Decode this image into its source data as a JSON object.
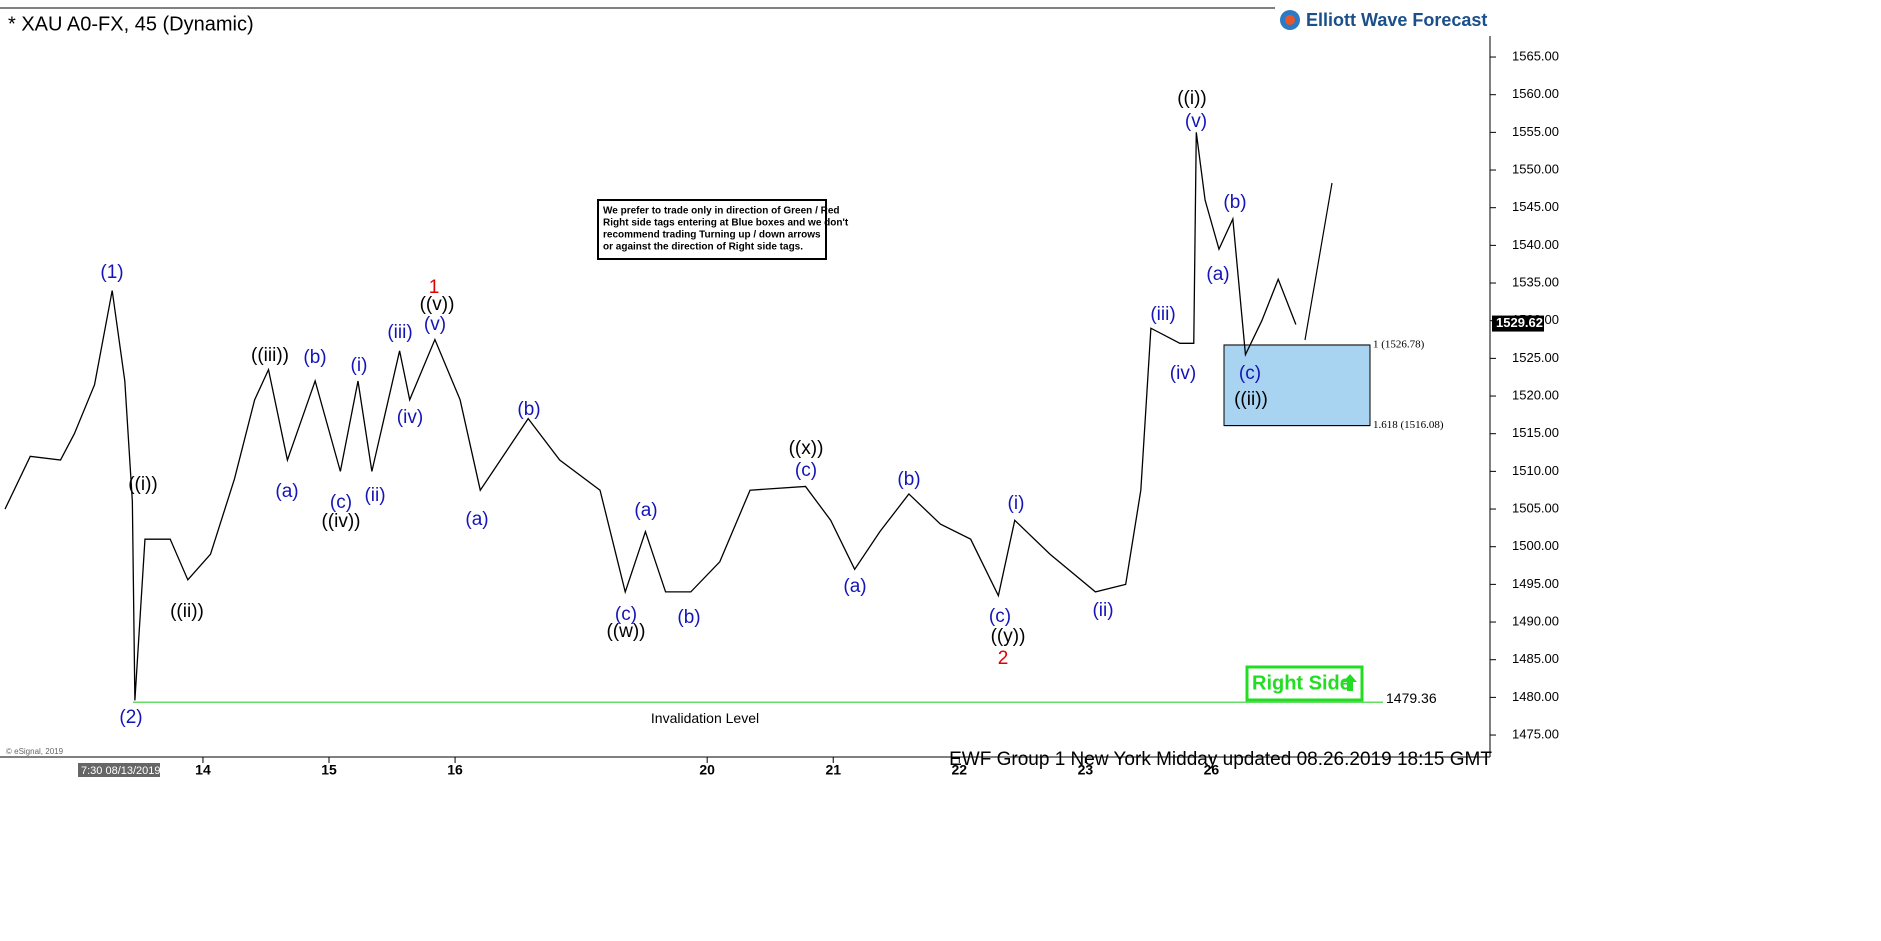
{
  "chart_data": {
    "type": "line",
    "title": "* XAU A0-FX, 45 (Dynamic)",
    "logo": "Elliott Wave Forecast",
    "footer": "EWF Group 1 New York Midday  updated 08.26.2019 18:15 GMT",
    "copyright": "© eSignal, 2019",
    "start_label": "7:30 08/13/2019",
    "note": [
      "We prefer to trade only in direction of Green / Red",
      "Right side tags entering at Blue boxes and we don't",
      "recommend trading Turning up / down arrows",
      "or against the direction of Right side tags."
    ],
    "right_side": "Right Side",
    "x": [
      -0.57,
      -0.37,
      -0.13,
      -0.02,
      0.14,
      0.28,
      0.38,
      0.44,
      0.46,
      0.54,
      0.74,
      0.88,
      1.06,
      1.25,
      1.41,
      1.52,
      1.67,
      1.89,
      2.09,
      2.23,
      2.34,
      2.56,
      2.64,
      2.84,
      3.04,
      3.2,
      3.58,
      3.83,
      4.15,
      4.35,
      4.51,
      4.67,
      4.87,
      5.1,
      5.34,
      5.78,
      5.98,
      6.17,
      6.37,
      6.6,
      6.85,
      7.09,
      7.31,
      7.44,
      7.72,
      8.08,
      8.32,
      8.44,
      8.52,
      8.75,
      8.86,
      8.88,
      8.95,
      9.06,
      9.17,
      9.27,
      9.4,
      9.53,
      9.67
    ],
    "series": [
      {
        "color": "#000000",
        "values": [
          1505,
          1512,
          1511.5,
          1515,
          1521.5,
          1534,
          1522,
          1506,
          1479.6,
          1501,
          1501,
          1495.6,
          1499,
          1509,
          1519.5,
          1523.5,
          1511.5,
          1522,
          1510,
          1522,
          1510,
          1526,
          1519.5,
          1527.5,
          1519.5,
          1507.5,
          1517,
          1511.5,
          1507.5,
          1494,
          1502,
          1494,
          1494,
          1498,
          1507.5,
          1508,
          1503.5,
          1497,
          1502,
          1507,
          1503,
          1501,
          1493.5,
          1503.5,
          1499,
          1494,
          1495,
          1507.5,
          1529,
          1527,
          1527,
          1555,
          1546,
          1539.5,
          1543.5,
          1525.5,
          1530,
          1535.5,
          1529.5
        ]
      }
    ],
    "xlim": [
      -0.61,
      11.21
    ],
    "xticks": [
      {
        "value": 1,
        "label": "14"
      },
      {
        "value": 2,
        "label": "15"
      },
      {
        "value": 3,
        "label": "16"
      },
      {
        "value": 5,
        "label": "20"
      },
      {
        "value": 6,
        "label": "21"
      },
      {
        "value": 7,
        "label": "22"
      },
      {
        "value": 8,
        "label": "23"
      },
      {
        "value": 9,
        "label": "26"
      }
    ],
    "ylim": [
      1472.35,
      1572.57
    ],
    "yticks": [
      {
        "value": 1475,
        "label": "1475.00"
      },
      {
        "value": 1480,
        "label": "1480.00"
      },
      {
        "value": 1485,
        "label": "1485.00"
      },
      {
        "value": 1490,
        "label": "1490.00"
      },
      {
        "value": 1495,
        "label": "1495.00"
      },
      {
        "value": 1500,
        "label": "1500.00"
      },
      {
        "value": 1505,
        "label": "1505.00"
      },
      {
        "value": 1510,
        "label": "1510.00"
      },
      {
        "value": 1515,
        "label": "1515.00"
      },
      {
        "value": 1520,
        "label": "1520.00"
      },
      {
        "value": 1525,
        "label": "1525.00"
      },
      {
        "value": 1530,
        "label": "1530.00"
      },
      {
        "value": 1535,
        "label": "1535.00"
      },
      {
        "value": 1540,
        "label": "1540.00"
      },
      {
        "value": 1545,
        "label": "1545.00"
      },
      {
        "value": 1550,
        "label": "1550.00"
      },
      {
        "value": 1555,
        "label": "1555.00"
      },
      {
        "value": 1560,
        "label": "1560.00"
      },
      {
        "value": 1565,
        "label": "1565.00"
      }
    ],
    "last_price": 1529.62,
    "target_box": {
      "color": "#a8d4f2",
      "levels": [
        {
          "value": 1526.78,
          "label": "1 (1526.78)"
        },
        {
          "value": 1516.08,
          "label": "1.618 (1516.08)"
        }
      ]
    },
    "invalidation": {
      "value": 1479.36,
      "text": "Invalidation Level",
      "color": "#66dd66"
    },
    "annotations": [
      {
        "text": "(1)",
        "color": "#1414b8"
      },
      {
        "text": "(2)",
        "color": "#1414b8"
      },
      {
        "text": "((i))",
        "color": "#000000"
      },
      {
        "text": "((ii))",
        "color": "#000000"
      },
      {
        "text": "((iii))",
        "color": "#000000"
      },
      {
        "text": "(a)",
        "color": "#1414b8"
      },
      {
        "text": "(b)",
        "color": "#1414b8"
      },
      {
        "text": "(c)",
        "color": "#1414b8"
      },
      {
        "text": "((iv))",
        "color": "#000000"
      },
      {
        "text": "(i)",
        "color": "#1414b8"
      },
      {
        "text": "(ii)",
        "color": "#1414b8"
      },
      {
        "text": "(iii)",
        "color": "#1414b8"
      },
      {
        "text": "(iv)",
        "color": "#1414b8"
      },
      {
        "text": "(v)",
        "color": "#1414b8"
      },
      {
        "text": "((v))",
        "color": "#000000"
      },
      {
        "text": "1",
        "color": "#e00000"
      },
      {
        "text": "(a)",
        "color": "#1414b8"
      },
      {
        "text": "(b)",
        "color": "#1414b8"
      },
      {
        "text": "(a)",
        "color": "#1414b8"
      },
      {
        "text": "(c)",
        "color": "#1414b8"
      },
      {
        "text": "((w))",
        "color": "#000000"
      },
      {
        "text": "(b)",
        "color": "#1414b8"
      },
      {
        "text": "((x))",
        "color": "#000000"
      },
      {
        "text": "(c)",
        "color": "#1414b8"
      },
      {
        "text": "(a)",
        "color": "#1414b8"
      },
      {
        "text": "(b)",
        "color": "#1414b8"
      },
      {
        "text": "(i)",
        "color": "#1414b8"
      },
      {
        "text": "(c)",
        "color": "#1414b8"
      },
      {
        "text": "((y))",
        "color": "#000000"
      },
      {
        "text": "2",
        "color": "#e00000"
      },
      {
        "text": "(ii)",
        "color": "#1414b8"
      },
      {
        "text": "(iii)",
        "color": "#1414b8"
      },
      {
        "text": "(iv)",
        "color": "#1414b8"
      },
      {
        "text": "((i))",
        "color": "#000000"
      },
      {
        "text": "(v)",
        "color": "#1414b8"
      },
      {
        "text": "(b)",
        "color": "#1414b8"
      },
      {
        "text": "(a)",
        "color": "#1414b8"
      },
      {
        "text": "(c)",
        "color": "#1414b8"
      },
      {
        "text": "((ii))",
        "color": "#000000"
      }
    ]
  }
}
